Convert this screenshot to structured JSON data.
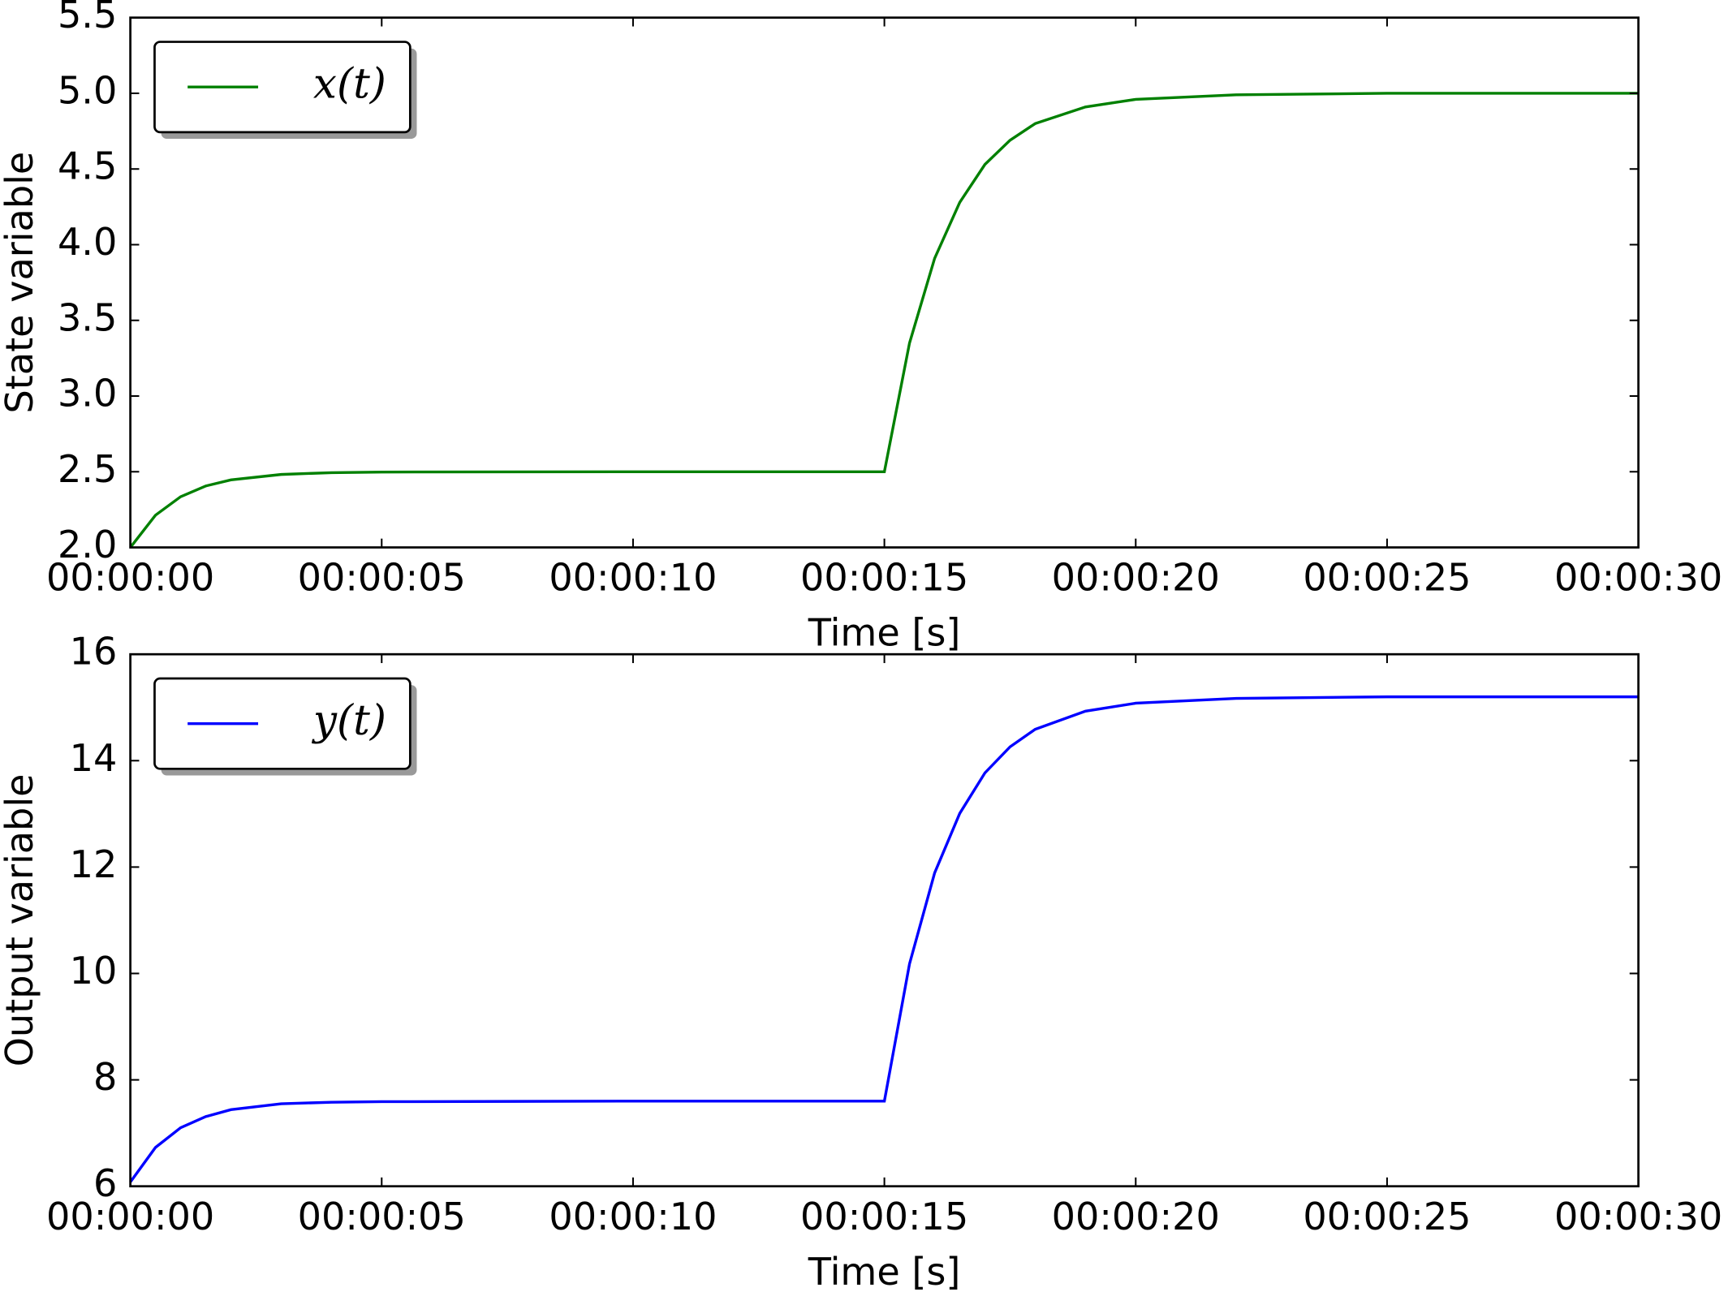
{
  "chart_data": [
    {
      "type": "line",
      "ylabel": "State variable",
      "xlabel": "Time [s]",
      "x": [
        0,
        0.5,
        1,
        1.5,
        2,
        3,
        4,
        5,
        10,
        15,
        15.5,
        16,
        16.5,
        17,
        17.5,
        18,
        19,
        20,
        22,
        25,
        30
      ],
      "series": [
        {
          "name": "x(t)",
          "color": "#008000",
          "values": [
            2.0,
            2.213,
            2.335,
            2.406,
            2.446,
            2.482,
            2.494,
            2.498,
            2.5,
            2.5,
            3.35,
            3.91,
            4.28,
            4.53,
            4.69,
            4.8,
            4.91,
            4.96,
            4.99,
            5.0,
            5.0
          ]
        }
      ],
      "xlim": [
        0,
        30
      ],
      "xticks": [
        {
          "value": 0,
          "label": "00:00:00"
        },
        {
          "value": 5,
          "label": "00:00:05"
        },
        {
          "value": 10,
          "label": "00:00:10"
        },
        {
          "value": 15,
          "label": "00:00:15"
        },
        {
          "value": 20,
          "label": "00:00:20"
        },
        {
          "value": 25,
          "label": "00:00:25"
        },
        {
          "value": 30,
          "label": "00:00:30"
        }
      ],
      "ylim": [
        2,
        5.5
      ],
      "yticks": [
        {
          "value": 2,
          "label": "2.0"
        },
        2.5,
        {
          "value": 3,
          "label": "3.0"
        },
        3.5,
        {
          "value": 4,
          "label": "4.0"
        },
        4.5,
        {
          "value": 5,
          "label": "5.0"
        },
        5.5
      ],
      "legend": "upper left",
      "grid": false
    },
    {
      "type": "line",
      "ylabel": "Output variable",
      "xlabel": "Time [s]",
      "x": [
        0,
        0.5,
        1,
        1.5,
        2,
        3,
        4,
        5,
        10,
        15,
        15.5,
        16,
        16.5,
        17,
        17.5,
        18,
        19,
        20,
        22,
        25,
        30
      ],
      "series": [
        {
          "name": "y(t)",
          "color": "#0000ff",
          "values": [
            6.08,
            6.73,
            7.1,
            7.31,
            7.44,
            7.55,
            7.58,
            7.59,
            7.6,
            7.6,
            10.18,
            11.89,
            13.01,
            13.77,
            14.26,
            14.59,
            14.93,
            15.08,
            15.17,
            15.2,
            15.2
          ]
        }
      ],
      "xlim": [
        0,
        30
      ],
      "xticks": [
        {
          "value": 0,
          "label": "00:00:00"
        },
        {
          "value": 5,
          "label": "00:00:05"
        },
        {
          "value": 10,
          "label": "00:00:10"
        },
        {
          "value": 15,
          "label": "00:00:15"
        },
        {
          "value": 20,
          "label": "00:00:20"
        },
        {
          "value": 25,
          "label": "00:00:25"
        },
        {
          "value": 30,
          "label": "00:00:30"
        }
      ],
      "ylim": [
        6,
        16
      ],
      "yticks": [
        6,
        8,
        10,
        12,
        14,
        16
      ],
      "legend": "upper left",
      "grid": false
    }
  ]
}
